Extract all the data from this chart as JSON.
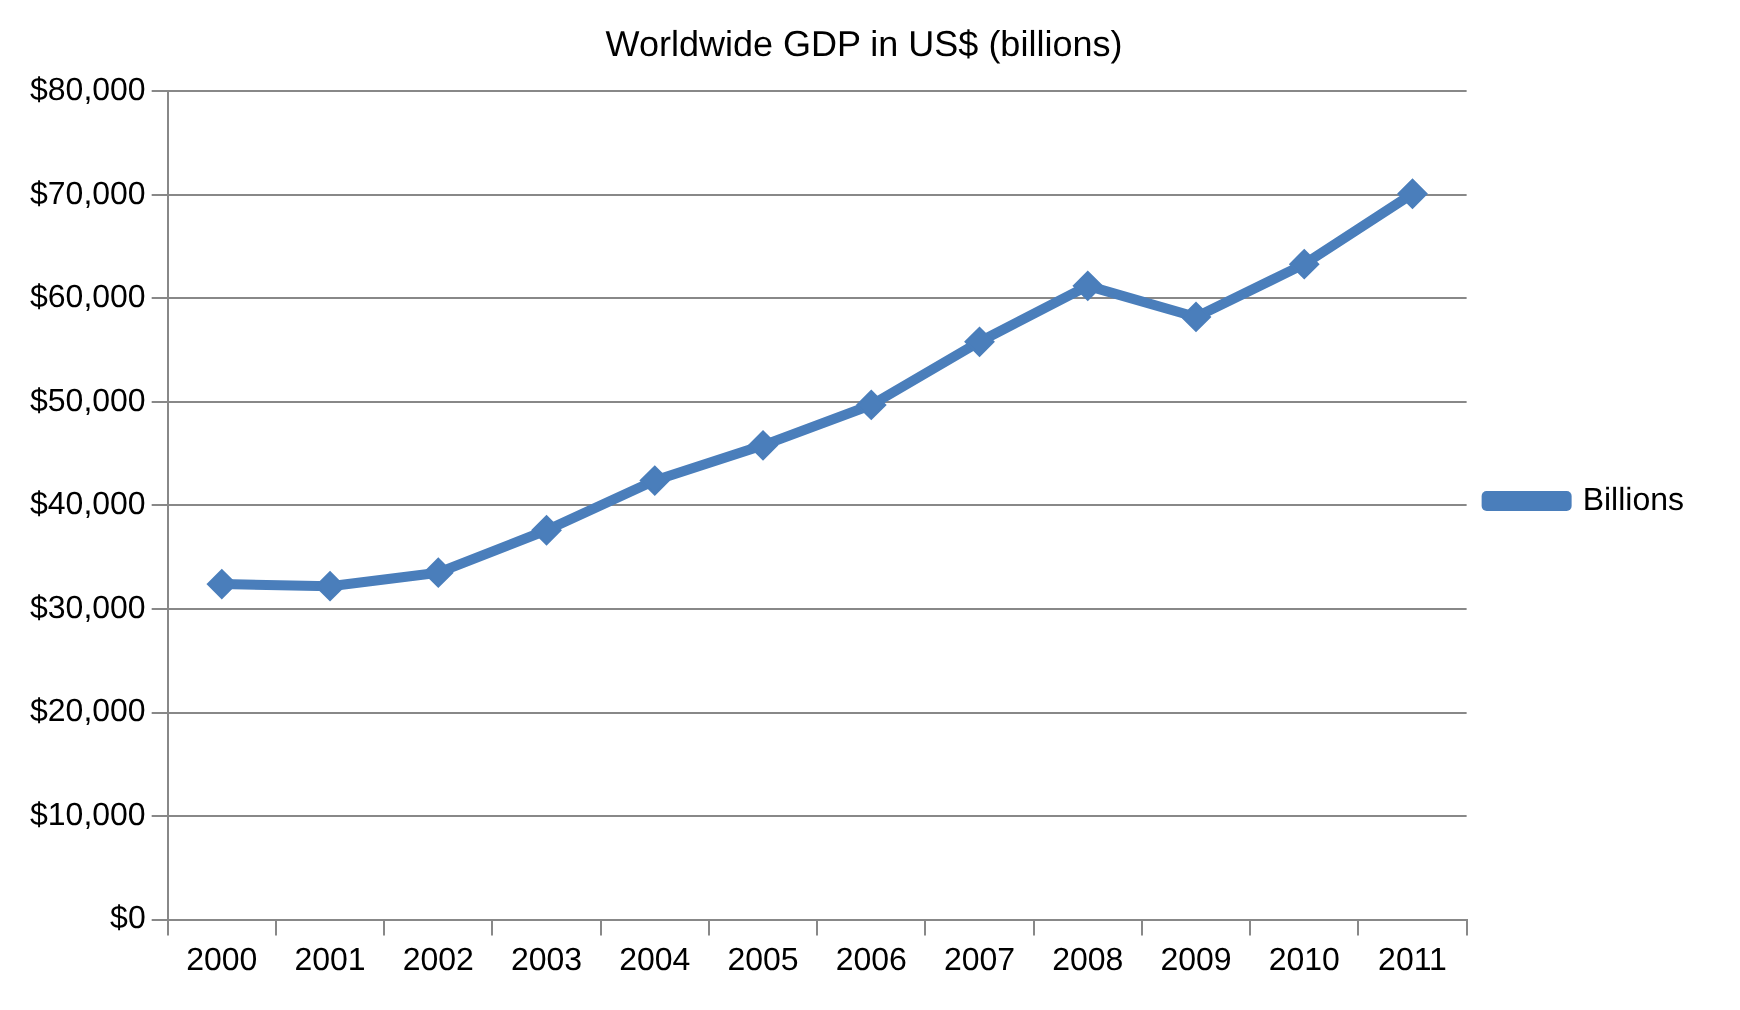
{
  "chart_data": {
    "type": "line",
    "title": "Worldwide GDP in US$ (billions)",
    "categories": [
      "2000",
      "2001",
      "2002",
      "2003",
      "2004",
      "2005",
      "2006",
      "2007",
      "2008",
      "2009",
      "2010",
      "2011"
    ],
    "series": [
      {
        "name": "Billions",
        "color": "#4a7ebb",
        "values": [
          32400,
          32200,
          33500,
          37600,
          42400,
          45800,
          49700,
          55800,
          61200,
          58200,
          63300,
          70100
        ]
      }
    ],
    "ylim": [
      0,
      80000
    ],
    "yticks": [
      {
        "value": 0,
        "label": "$0"
      },
      {
        "value": 10000,
        "label": "$10,000"
      },
      {
        "value": 20000,
        "label": "$20,000"
      },
      {
        "value": 30000,
        "label": "$30,000"
      },
      {
        "value": 40000,
        "label": "$40,000"
      },
      {
        "value": 50000,
        "label": "$50,000"
      },
      {
        "value": 60000,
        "label": "$60,000"
      },
      {
        "value": 70000,
        "label": "$70,000"
      },
      {
        "value": 80000,
        "label": "$80,000"
      }
    ],
    "grid": "y",
    "legend": "right",
    "marker": "diamond",
    "line_style": "solid"
  }
}
